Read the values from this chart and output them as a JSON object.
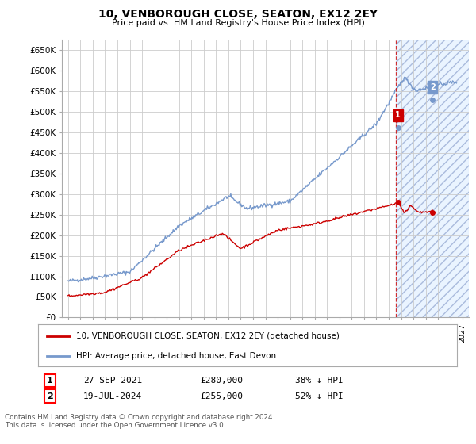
{
  "title": "10, VENBOROUGH CLOSE, SEATON, EX12 2EY",
  "subtitle": "Price paid vs. HM Land Registry's House Price Index (HPI)",
  "ylabel_ticks": [
    "£0",
    "£50K",
    "£100K",
    "£150K",
    "£200K",
    "£250K",
    "£300K",
    "£350K",
    "£400K",
    "£450K",
    "£500K",
    "£550K",
    "£600K",
    "£650K"
  ],
  "ytick_values": [
    0,
    50000,
    100000,
    150000,
    200000,
    250000,
    300000,
    350000,
    400000,
    450000,
    500000,
    550000,
    600000,
    650000
  ],
  "xmin": 1994.5,
  "xmax": 2027.5,
  "ymin": 0,
  "ymax": 675000,
  "legend1": "10, VENBOROUGH CLOSE, SEATON, EX12 2EY (detached house)",
  "legend2": "HPI: Average price, detached house, East Devon",
  "point1_date": "27-SEP-2021",
  "point1_price": "£280,000",
  "point1_hpi": "38% ↓ HPI",
  "point2_date": "19-JUL-2024",
  "point2_price": "£255,000",
  "point2_hpi": "52% ↓ HPI",
  "footnote": "Contains HM Land Registry data © Crown copyright and database right 2024.\nThis data is licensed under the Open Government Licence v3.0.",
  "line_red": "#cc0000",
  "line_blue": "#7799cc",
  "bg_color": "#ffffff",
  "grid_color": "#cccccc",
  "shade_color": "#ddeeff",
  "hatch_color": "#aabbdd",
  "point1_x": 2021.75,
  "point1_y_red": 280000,
  "point1_y_blue": 462000,
  "point2_x": 2024.55,
  "point2_y_red": 255000,
  "point2_y_blue": 530000,
  "vline_x": 2021.58
}
